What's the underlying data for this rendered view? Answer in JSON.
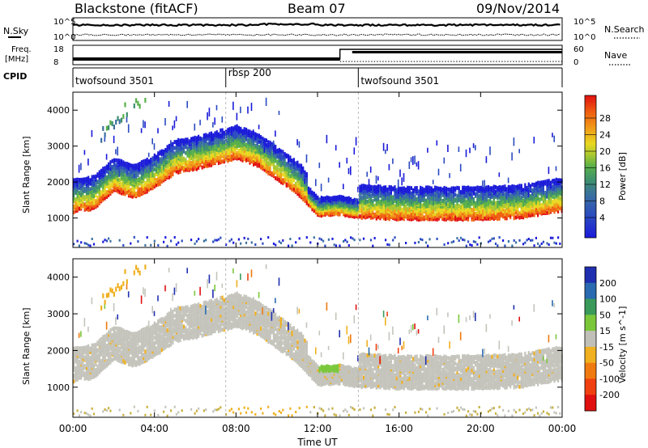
{
  "header": {
    "radar": "Blackstone (fitACF)",
    "beam": "Beam 07",
    "date": "09/Nov/2014"
  },
  "top_panels": {
    "nsky_label": "N.Sky",
    "nsearch_label": "N.Search",
    "noise_ticks": [
      "10^5",
      "10^0"
    ],
    "freq_label_1": "Freq.",
    "freq_label_2": "[MHz]",
    "freq_ticks": [
      "18",
      "8"
    ],
    "nave_label": "Nave",
    "nave_ticks": [
      "60",
      "0"
    ],
    "cpid_label": "CPID"
  },
  "cpid_segments": [
    {
      "name": "twofsound 3501",
      "start_h": 0.0
    },
    {
      "name": "rbsp 200",
      "start_h": 7.5
    },
    {
      "name": "twofsound 3501",
      "start_h": 14.0
    }
  ],
  "colorbars": {
    "power": {
      "label": "Power [dB]",
      "ticks": [
        "28",
        "24",
        "20",
        "16",
        "12",
        "8",
        "4"
      ],
      "colors": [
        "#1a1ad9",
        "#2a4ac0",
        "#3a70a0",
        "#3d8f6e",
        "#58b04a",
        "#a8c830",
        "#e8d820",
        "#f0a018",
        "#f06010",
        "#e01010"
      ]
    },
    "velocity": {
      "label": "Velocity [m s^-1]",
      "ticks": [
        "200",
        "100",
        "50",
        "15",
        "-15",
        "-50",
        "-100",
        "-200"
      ],
      "colors": [
        "#1f2fb0",
        "#2a6ab0",
        "#3a9a5a",
        "#7ac83a",
        "#c0c0b8",
        "#f0b020",
        "#f07a10",
        "#f04010",
        "#e01010"
      ]
    }
  },
  "chart_data": [
    {
      "type": "heatmap",
      "title": "Blackstone (fitACF)  Beam 07  09/Nov/2014",
      "name": "Power",
      "xlabel": "Time UT",
      "ylabel": "Slant Range [km]",
      "xlim_hours": [
        0,
        24
      ],
      "ylim": [
        180,
        4500
      ],
      "x_ticks": [
        "00:00",
        "04:00",
        "08:00",
        "12:00",
        "16:00",
        "20:00",
        "00:00"
      ],
      "y_ticks": [
        1000,
        2000,
        3000,
        4000
      ],
      "zlabel": "Power [dB]",
      "zlim": [
        0,
        30
      ],
      "main_echo_band": {
        "hours": [
          0,
          1,
          2,
          3,
          4,
          5,
          6,
          7,
          8,
          9,
          10,
          11,
          12,
          13,
          14,
          16,
          18,
          20,
          22,
          24
        ],
        "range_km": [
          1200,
          1300,
          1800,
          1600,
          1900,
          2300,
          2400,
          2550,
          2700,
          2500,
          2100,
          1700,
          1100,
          1150,
          1050,
          1000,
          1000,
          1000,
          1050,
          1250
        ]
      }
    },
    {
      "type": "heatmap",
      "name": "Velocity",
      "xlabel": "Time UT",
      "ylabel": "Slant Range [km]",
      "xlim_hours": [
        0,
        24
      ],
      "ylim": [
        180,
        4500
      ],
      "x_ticks": [
        "00:00",
        "04:00",
        "08:00",
        "12:00",
        "16:00",
        "20:00",
        "00:00"
      ],
      "y_ticks": [
        1000,
        2000,
        3000,
        4000
      ],
      "zlabel": "Velocity [m s^-1]",
      "zlim": [
        -200,
        200
      ]
    }
  ],
  "xaxis": {
    "ticks": [
      "00:00",
      "04:00",
      "08:00",
      "12:00",
      "16:00",
      "20:00",
      "00:00"
    ],
    "label": "Time UT"
  },
  "yaxis_label": "Slant Range [km]"
}
